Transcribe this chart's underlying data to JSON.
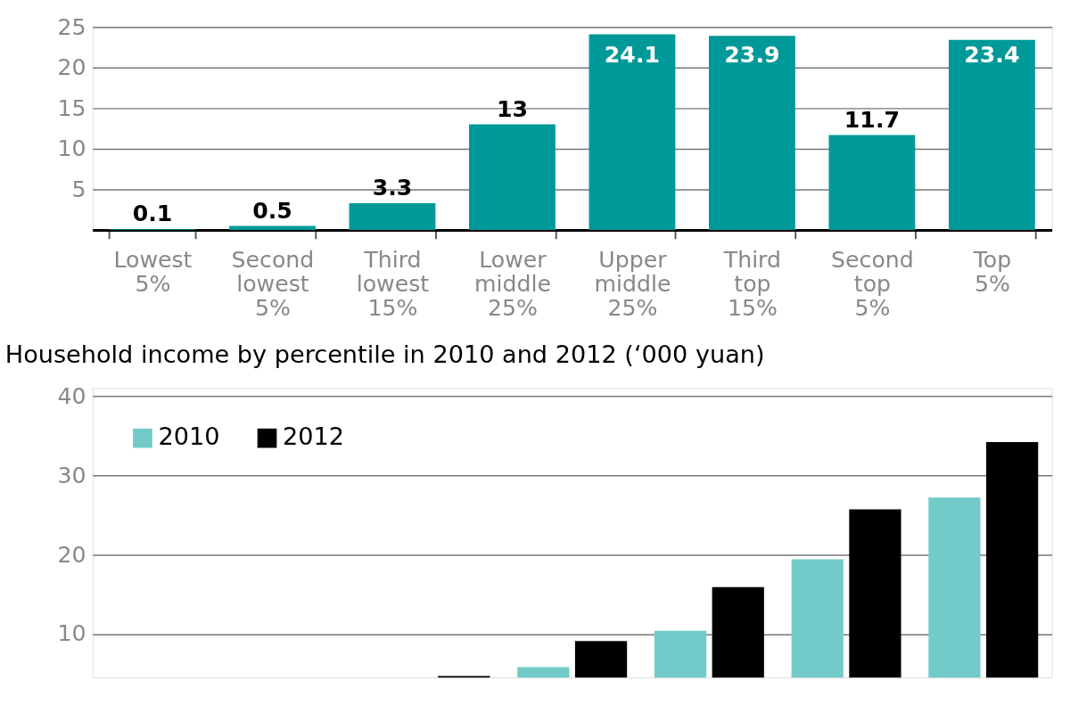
{
  "chart_data": [
    {
      "type": "bar",
      "categories": [
        "Lowest 5%",
        "Second lowest 5%",
        "Third lowest 15%",
        "Lower middle 25%",
        "Upper middle 25%",
        "Third top 15%",
        "Second top 5%",
        "Top 5%"
      ],
      "values": [
        0.1,
        0.5,
        3.3,
        13,
        24.1,
        23.9,
        11.7,
        23.4
      ],
      "color": "#009999",
      "ylim": [
        0,
        25
      ],
      "yticks": [
        5,
        10,
        15,
        20,
        25
      ],
      "grid": "y",
      "data_labels": true
    },
    {
      "type": "bar",
      "title": "Household income by percentile in 2010 and 2012 (‘000 yuan)",
      "categories": [
        null,
        null,
        null,
        null,
        null,
        null,
        null
      ],
      "series": [
        {
          "name": "2010",
          "color": "#72cbc9",
          "values": [
            null,
            null,
            null,
            5.8,
            10.4,
            19.4,
            27.2
          ]
        },
        {
          "name": "2012",
          "color": "#000000",
          "values": [
            null,
            null,
            4.7,
            9.1,
            15.9,
            25.7,
            34.2
          ]
        }
      ],
      "ylim": [
        4.5,
        41
      ],
      "yticks": [
        10,
        20,
        30,
        40
      ],
      "grid": "y",
      "legend": "top left",
      "tick_labels": "y"
    }
  ]
}
